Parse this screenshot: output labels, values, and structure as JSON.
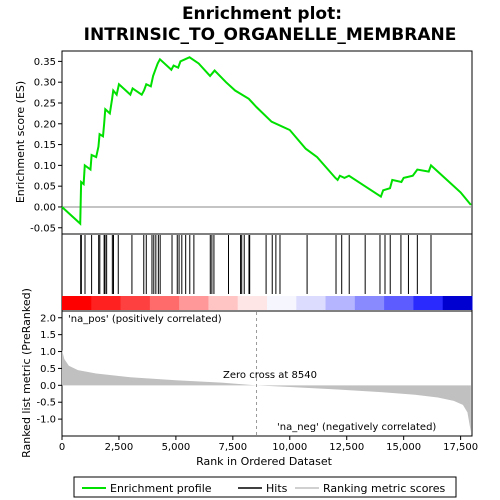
{
  "chart_data": {
    "type": "line",
    "title_line1": "Enrichment plot:",
    "title_line2": "INTRINSIC_TO_ORGANELLE_MEMBRANE",
    "top_panel": {
      "ylabel": "Enrichment score (ES)",
      "ylim": [
        -0.065,
        0.375
      ],
      "yticks": [
        -0.05,
        0.0,
        0.05,
        0.1,
        0.15,
        0.2,
        0.25,
        0.3,
        0.35
      ],
      "ytick_labels": [
        "-0.05",
        "0.00",
        "0.05",
        "0.10",
        "0.15",
        "0.20",
        "0.25",
        "0.30",
        "0.35"
      ],
      "line_color": "#00e000",
      "es_curve": [
        [
          0,
          0.0
        ],
        [
          800,
          -0.04
        ],
        [
          820,
          0.01
        ],
        [
          840,
          0.06
        ],
        [
          950,
          0.055
        ],
        [
          1000,
          0.1
        ],
        [
          1250,
          0.09
        ],
        [
          1300,
          0.125
        ],
        [
          1500,
          0.12
        ],
        [
          1600,
          0.145
        ],
        [
          1650,
          0.175
        ],
        [
          1800,
          0.17
        ],
        [
          1850,
          0.2
        ],
        [
          1900,
          0.235
        ],
        [
          2100,
          0.225
        ],
        [
          2200,
          0.26
        ],
        [
          2250,
          0.28
        ],
        [
          2400,
          0.27
        ],
        [
          2500,
          0.295
        ],
        [
          3000,
          0.27
        ],
        [
          3100,
          0.285
        ],
        [
          3500,
          0.27
        ],
        [
          3600,
          0.28
        ],
        [
          3700,
          0.295
        ],
        [
          3900,
          0.29
        ],
        [
          4000,
          0.315
        ],
        [
          4100,
          0.33
        ],
        [
          4200,
          0.345
        ],
        [
          4300,
          0.355
        ],
        [
          4800,
          0.33
        ],
        [
          4900,
          0.34
        ],
        [
          5100,
          0.335
        ],
        [
          5200,
          0.35
        ],
        [
          5400,
          0.355
        ],
        [
          5600,
          0.36
        ],
        [
          6000,
          0.345
        ],
        [
          6500,
          0.315
        ],
        [
          6700,
          0.328
        ],
        [
          7200,
          0.3
        ],
        [
          7600,
          0.28
        ],
        [
          8200,
          0.26
        ],
        [
          8540,
          0.24
        ],
        [
          9200,
          0.205
        ],
        [
          10000,
          0.185
        ],
        [
          10700,
          0.14
        ],
        [
          11200,
          0.12
        ],
        [
          12000,
          0.07
        ],
        [
          12100,
          0.065
        ],
        [
          12200,
          0.075
        ],
        [
          12400,
          0.07
        ],
        [
          12600,
          0.075
        ],
        [
          13300,
          0.05
        ],
        [
          14000,
          0.025
        ],
        [
          14100,
          0.04
        ],
        [
          14400,
          0.045
        ],
        [
          14500,
          0.065
        ],
        [
          14900,
          0.06
        ],
        [
          15000,
          0.07
        ],
        [
          15400,
          0.075
        ],
        [
          15600,
          0.09
        ],
        [
          16100,
          0.085
        ],
        [
          16200,
          0.1
        ],
        [
          17000,
          0.06
        ],
        [
          17500,
          0.035
        ],
        [
          17950,
          0.005
        ]
      ]
    },
    "hits_panel": {
      "hit_positions": [
        820,
        850,
        1010,
        1300,
        1610,
        1660,
        1850,
        1890,
        1960,
        2210,
        2260,
        2470,
        3070,
        3590,
        3700,
        3950,
        4030,
        4120,
        4230,
        4310,
        4830,
        5060,
        5140,
        5260,
        5430,
        5610,
        5790,
        6510,
        6580,
        6670,
        7310,
        7840,
        7890,
        8000,
        8210,
        8240,
        8960,
        9230,
        9390,
        9570,
        10760,
        12030,
        12280,
        12610,
        13310,
        13960,
        14180,
        14410,
        14880,
        15210,
        15600,
        16200
      ],
      "heat_colors": [
        "#ff0000",
        "#ff2020",
        "#ff4040",
        "#ff6a6a",
        "#ff9898",
        "#ffc4c4",
        "#ffe6e6",
        "#f6f6ff",
        "#dcdcff",
        "#b4b4ff",
        "#8a8aff",
        "#5c5cff",
        "#2a2aff",
        "#0000d0"
      ]
    },
    "bottom_panel": {
      "xlabel": "Rank in Ordered Dataset",
      "ylabel": "Ranked list metric (PreRanked)",
      "xlim": [
        0,
        18000
      ],
      "ylim": [
        -1.5,
        2.2
      ],
      "xticks": [
        0,
        2500,
        5000,
        7500,
        10000,
        12500,
        15000,
        17500
      ],
      "xtick_labels": [
        "0",
        "2,500",
        "5,000",
        "7,500",
        "10,000",
        "12,500",
        "15,000",
        "17,500"
      ],
      "yticks": [
        -1.0,
        -0.5,
        0.0,
        0.5,
        1.0,
        1.5,
        2.0
      ],
      "ytick_labels": [
        "-1.0",
        "-0.5",
        "0.0",
        "0.5",
        "1.0",
        "1.5",
        "2.0"
      ],
      "fill_color": "#c0c0c0",
      "metric_curve": [
        [
          0,
          1.05
        ],
        [
          100,
          0.78
        ],
        [
          300,
          0.58
        ],
        [
          700,
          0.45
        ],
        [
          1500,
          0.35
        ],
        [
          3000,
          0.24
        ],
        [
          5000,
          0.15
        ],
        [
          7000,
          0.08
        ],
        [
          8540,
          0.0
        ],
        [
          10000,
          -0.05
        ],
        [
          12000,
          -0.12
        ],
        [
          14000,
          -0.2
        ],
        [
          15500,
          -0.28
        ],
        [
          16500,
          -0.36
        ],
        [
          17200,
          -0.46
        ],
        [
          17600,
          -0.58
        ],
        [
          17800,
          -0.8
        ],
        [
          17950,
          -1.38
        ]
      ],
      "zero_cross_rank": 8540,
      "zero_cross_label": "Zero cross at 8540",
      "pos_label": "'na_pos' (positively correlated)",
      "neg_label": "'na_neg' (negatively correlated)",
      "pos_color": "#cc0000",
      "neg_color": "#0000cc"
    },
    "legend": {
      "placement": "bottom",
      "entries": [
        {
          "label": "Enrichment profile",
          "color": "#00e000"
        },
        {
          "label": "Hits",
          "color": "#000000"
        },
        {
          "label": "Ranking metric scores",
          "color": "#c0c0c0"
        }
      ]
    }
  }
}
